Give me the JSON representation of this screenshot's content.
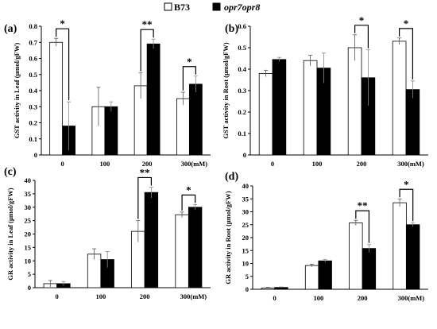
{
  "legend": [
    {
      "name": "B73",
      "color": "#ffffff"
    },
    {
      "name": "opr7opr8",
      "color": "#000000"
    }
  ],
  "chart_data": [
    {
      "panel": "(a)",
      "type": "bar",
      "categories": [
        "0",
        "100",
        "200",
        "300(mM)"
      ],
      "ylabel": "GST activity in Leaf (μmol/gFW)",
      "ylim": [
        0,
        0.8
      ],
      "yticks": [
        "0",
        "0.1",
        "0.2",
        "0.3",
        "0.4",
        "0.5",
        "0.6",
        "0.7",
        "0.8"
      ],
      "series": [
        {
          "name": "B73",
          "values": [
            0.7,
            0.3,
            0.43,
            0.35
          ],
          "errors": [
            0.025,
            0.12,
            0.08,
            0.04
          ]
        },
        {
          "name": "opr7opr8",
          "values": [
            0.18,
            0.3,
            0.69,
            0.44
          ],
          "errors": [
            0.15,
            0.03,
            0.03,
            0.05
          ]
        }
      ],
      "significance": [
        "*",
        "",
        "**",
        "*"
      ]
    },
    {
      "panel": "(b)",
      "type": "bar",
      "categories": [
        "0",
        "100",
        "200",
        "300(mM)"
      ],
      "ylabel": "GST activity in Root (μmol/gFW)",
      "ylim": [
        0,
        0.6
      ],
      "yticks": [
        "0",
        "0.1",
        "0.2",
        "0.3",
        "0.4",
        "0.5",
        "0.6"
      ],
      "series": [
        {
          "name": "B73",
          "values": [
            0.38,
            0.44,
            0.5,
            0.53
          ],
          "errors": [
            0.015,
            0.025,
            0.06,
            0.015
          ]
        },
        {
          "name": "opr7opr8",
          "values": [
            0.445,
            0.405,
            0.36,
            0.305
          ],
          "errors": [
            0.01,
            0.07,
            0.13,
            0.04
          ]
        }
      ],
      "significance": [
        "",
        "",
        "*",
        "*"
      ]
    },
    {
      "panel": "(c)",
      "type": "bar",
      "categories": [
        "0",
        "100",
        "200",
        "300(mM)"
      ],
      "ylabel": "GR activity in Leaf (μmol/gFW)",
      "ylim": [
        0,
        40
      ],
      "yticks": [
        "0",
        "5",
        "10",
        "15",
        "20",
        "25",
        "30",
        "35",
        "40"
      ],
      "series": [
        {
          "name": "B73",
          "values": [
            1.5,
            12.5,
            21.0,
            27.2
          ],
          "errors": [
            1.2,
            2.0,
            4.0,
            1.0
          ]
        },
        {
          "name": "opr7opr8",
          "values": [
            1.5,
            10.5,
            35.5,
            30.0
          ],
          "errors": [
            0.8,
            3.0,
            2.0,
            1.0
          ]
        }
      ],
      "significance": [
        "",
        "",
        "**",
        "*"
      ]
    },
    {
      "panel": "(d)",
      "type": "bar",
      "categories": [
        "0",
        "100",
        "200",
        "300(mM)"
      ],
      "ylabel": "GR activity in Root (μmol/gFW)",
      "ylim": [
        0,
        40
      ],
      "yticks": [
        "0",
        "5",
        "10",
        "15",
        "20",
        "25",
        "30",
        "35",
        "40"
      ],
      "series": [
        {
          "name": "B73",
          "values": [
            0.5,
            9.2,
            25.7,
            33.5
          ],
          "errors": [
            0.2,
            0.5,
            1.0,
            1.5
          ]
        },
        {
          "name": "opr7opr8",
          "values": [
            0.7,
            11.0,
            15.8,
            25.0
          ],
          "errors": [
            0.2,
            0.5,
            1.5,
            0.8
          ]
        }
      ],
      "significance": [
        "",
        "",
        "**",
        "*"
      ]
    }
  ]
}
